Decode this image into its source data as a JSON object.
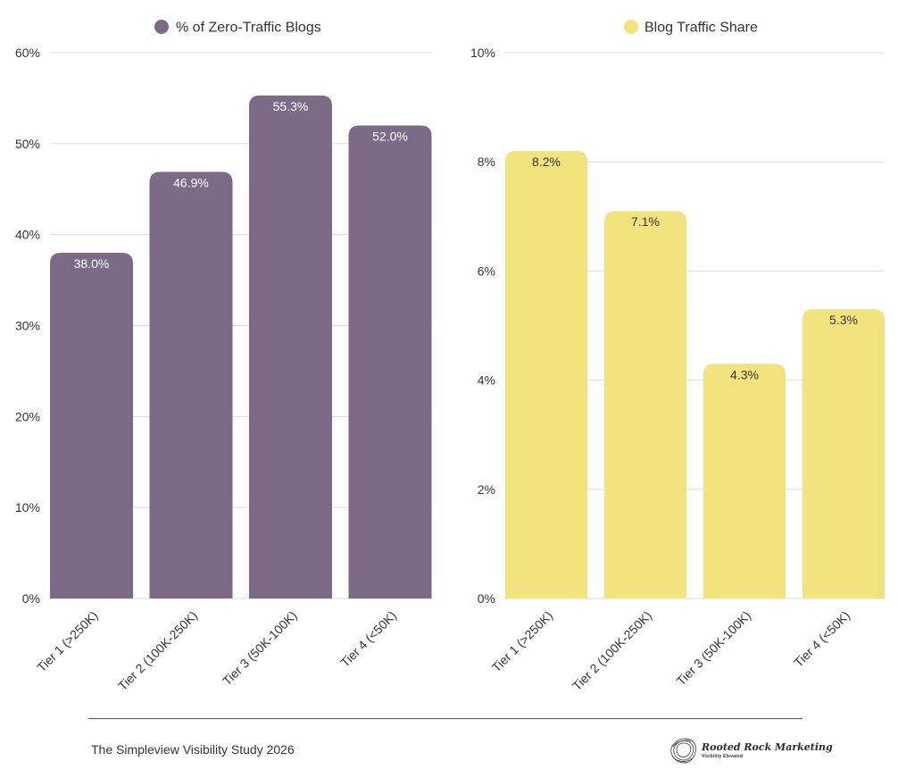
{
  "chart_data": [
    {
      "type": "bar",
      "categories": [
        "Tier 1 (>250K)",
        "Tier 2 (100K-250K)",
        "Tier 3 (50K-100K)",
        "Tier 4 (<50K)"
      ],
      "series": [
        {
          "name": "% of Zero-Traffic Blogs",
          "values": [
            38.0,
            46.9,
            55.3,
            52.0
          ],
          "labels": [
            "38.0%",
            "46.9%",
            "55.3%",
            "52.0%"
          ],
          "color": "#7b6b87",
          "label_color": "#ffffff"
        }
      ],
      "yticks": [
        0,
        10,
        20,
        30,
        40,
        50,
        60
      ],
      "ytick_labels": [
        "0%",
        "10%",
        "20%",
        "30%",
        "40%",
        "50%",
        "60%"
      ],
      "ylim": [
        0,
        60
      ],
      "grid": true,
      "legend_position": "top-center"
    },
    {
      "type": "bar",
      "categories": [
        "Tier 1 (>250K)",
        "Tier 2 (100K-250K)",
        "Tier 3 (50K-100K)",
        "Tier 4 (<50K)"
      ],
      "series": [
        {
          "name": "Blog Traffic Share",
          "values": [
            8.2,
            7.1,
            4.3,
            5.3
          ],
          "labels": [
            "8.2%",
            "7.1%",
            "4.3%",
            "5.3%"
          ],
          "color": "#f2e37e",
          "label_color": "#333333"
        }
      ],
      "yticks": [
        0,
        2,
        4,
        6,
        8,
        10
      ],
      "ytick_labels": [
        "0%",
        "2%",
        "4%",
        "6%",
        "8%",
        "10%"
      ],
      "ylim": [
        0,
        10
      ],
      "grid": true,
      "legend_position": "top-center"
    }
  ],
  "footer": {
    "source": "The Simpleview Visibility Study 2026",
    "brand_name": "Rooted Rock Marketing",
    "brand_tagline": "Visibility Elevated",
    "brand_logo_icon": "rock-logo-icon"
  }
}
